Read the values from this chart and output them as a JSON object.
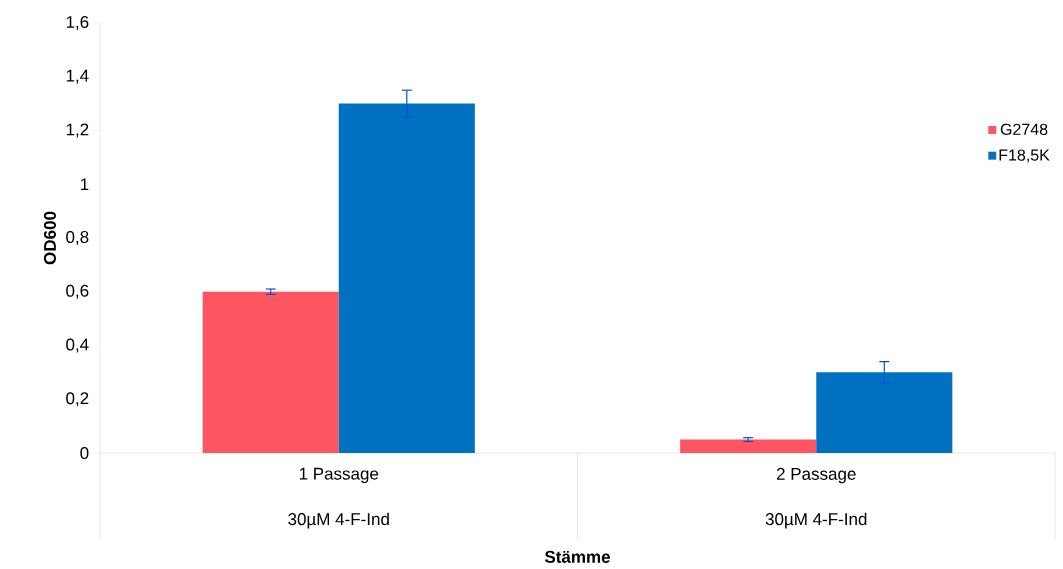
{
  "chart_data": {
    "type": "bar",
    "xlabel": "Stämme",
    "ylabel": "OD600",
    "categories": [
      "1 Passage",
      "2 Passage"
    ],
    "annotations": [
      "30µM 4-F-Ind",
      "30µM 4-F-Ind"
    ],
    "series": [
      {
        "name": "G2748",
        "color": "#ff5560",
        "values": [
          0.6,
          0.05
        ],
        "errors": [
          0.01,
          0.007
        ]
      },
      {
        "name": "F18,5K",
        "color": "#0070c0",
        "values": [
          1.3,
          0.3
        ],
        "errors": [
          0.05,
          0.04
        ]
      }
    ],
    "ylim": [
      0,
      1.6
    ],
    "yticks": [
      0,
      {
        "value": 0.2,
        "label": "0,2"
      },
      {
        "value": 0.4,
        "label": "0,4"
      },
      {
        "value": 0.6,
        "label": "0,6"
      },
      {
        "value": 0.8,
        "label": "0,8"
      },
      1,
      {
        "value": 1.2,
        "label": "1,2"
      },
      {
        "value": 1.4,
        "label": "1,4"
      },
      {
        "value": 1.6,
        "label": "1,6"
      }
    ],
    "legend": "right",
    "grid": false
  }
}
